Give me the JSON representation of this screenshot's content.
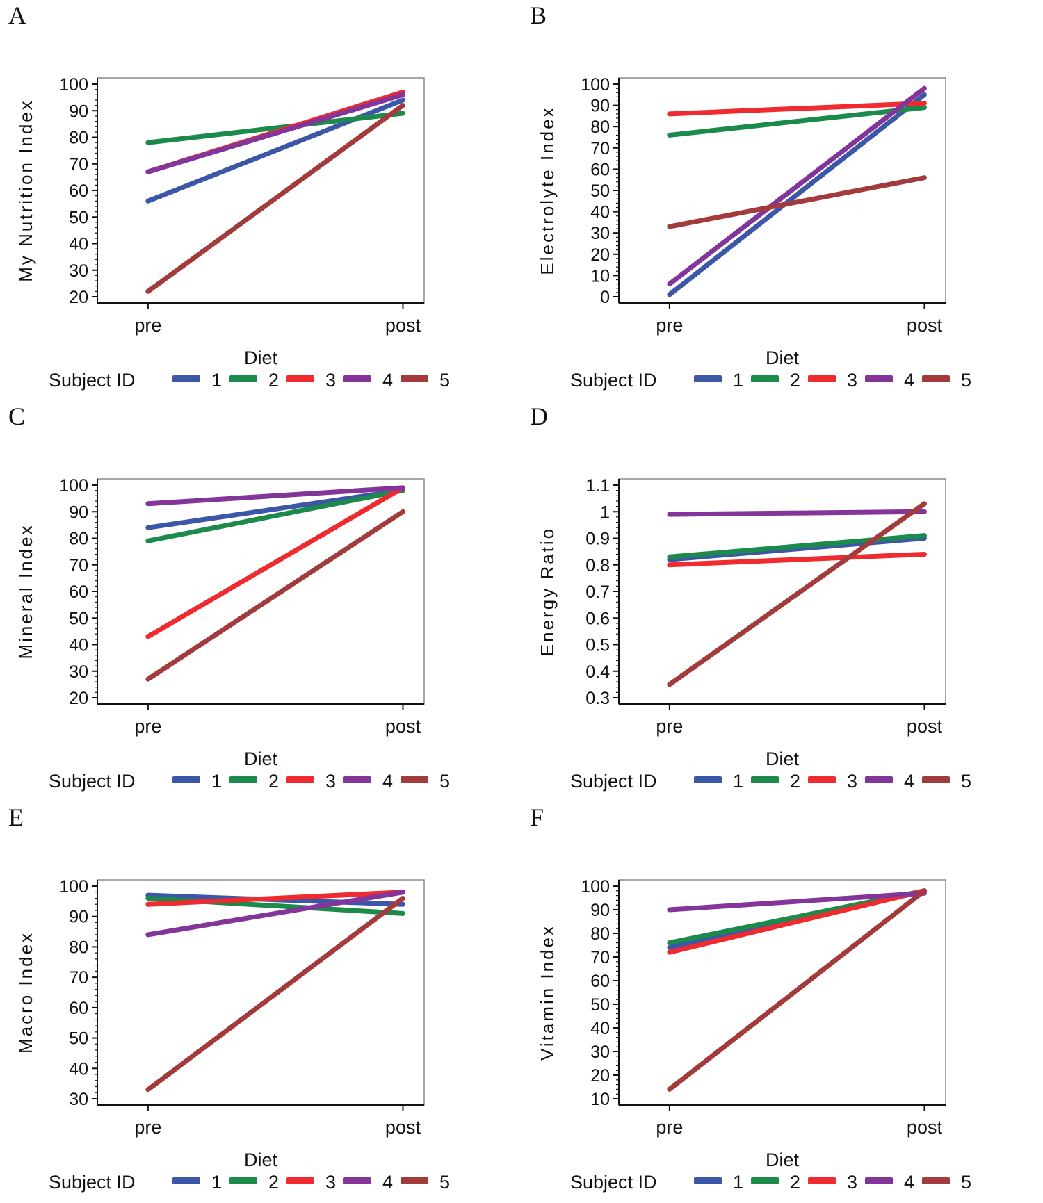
{
  "figure": {
    "background": "#ffffff",
    "x_axis_label": "Diet",
    "categories": [
      "pre",
      "post"
    ]
  },
  "legend": {
    "title": "Subject ID",
    "items": [
      {
        "label": "1",
        "color": "#3D57A8"
      },
      {
        "label": "2",
        "color": "#1B8A4A"
      },
      {
        "label": "3",
        "color": "#EF2B30"
      },
      {
        "label": "4",
        "color": "#83359A"
      },
      {
        "label": "5",
        "color": "#A33A3C"
      }
    ]
  },
  "chart_data": [
    {
      "panel": "A",
      "type": "line",
      "title": "",
      "xlabel": "Diet",
      "ylabel": "My Nutrition Index",
      "categories": [
        "pre",
        "post"
      ],
      "ylim": [
        20,
        100
      ],
      "ytick_values": [
        20,
        30,
        40,
        50,
        60,
        70,
        80,
        90,
        100
      ],
      "ytick_labels": [
        "20",
        "30",
        "40",
        "50",
        "60",
        "70",
        "80",
        "90",
        "100"
      ],
      "grid": false,
      "legend_position": "bottom",
      "series": [
        {
          "name": "1",
          "values": [
            56,
            94
          ]
        },
        {
          "name": "2",
          "values": [
            78,
            89
          ]
        },
        {
          "name": "3",
          "values": [
            67,
            97
          ]
        },
        {
          "name": "4",
          "values": [
            67,
            96
          ]
        },
        {
          "name": "5",
          "values": [
            22,
            92
          ]
        }
      ]
    },
    {
      "panel": "B",
      "type": "line",
      "title": "",
      "xlabel": "Diet",
      "ylabel": "Electrolyte Index",
      "categories": [
        "pre",
        "post"
      ],
      "ylim": [
        0,
        100
      ],
      "ytick_values": [
        0,
        10,
        20,
        30,
        40,
        50,
        60,
        70,
        80,
        90,
        100
      ],
      "ytick_labels": [
        "0",
        "10",
        "20",
        "30",
        "40",
        "50",
        "60",
        "70",
        "80",
        "90",
        "100"
      ],
      "grid": false,
      "legend_position": "bottom",
      "series": [
        {
          "name": "1",
          "values": [
            1,
            95
          ]
        },
        {
          "name": "2",
          "values": [
            76,
            89
          ]
        },
        {
          "name": "3",
          "values": [
            86,
            91
          ]
        },
        {
          "name": "4",
          "values": [
            6,
            98
          ]
        },
        {
          "name": "5",
          "values": [
            33,
            56
          ]
        }
      ]
    },
    {
      "panel": "C",
      "type": "line",
      "title": "",
      "xlabel": "Diet",
      "ylabel": "Mineral Index",
      "categories": [
        "pre",
        "post"
      ],
      "ylim": [
        20,
        100
      ],
      "ytick_values": [
        20,
        30,
        40,
        50,
        60,
        70,
        80,
        90,
        100
      ],
      "ytick_labels": [
        "20",
        "30",
        "40",
        "50",
        "60",
        "70",
        "80",
        "90",
        "100"
      ],
      "grid": false,
      "legend_position": "bottom",
      "series": [
        {
          "name": "1",
          "values": [
            84,
            98
          ]
        },
        {
          "name": "2",
          "values": [
            79,
            98
          ]
        },
        {
          "name": "3",
          "values": [
            43,
            99
          ]
        },
        {
          "name": "4",
          "values": [
            93,
            99
          ]
        },
        {
          "name": "5",
          "values": [
            27,
            90
          ]
        }
      ]
    },
    {
      "panel": "D",
      "type": "line",
      "title": "",
      "xlabel": "Diet",
      "ylabel": "Energy Ratio",
      "categories": [
        "pre",
        "post"
      ],
      "ylim": [
        0.3,
        1.1
      ],
      "ytick_values": [
        0.3,
        0.4,
        0.5,
        0.6,
        0.7,
        0.8,
        0.9,
        1.0,
        1.1
      ],
      "ytick_labels": [
        "0.3",
        "0.4",
        "0.5",
        "0.6",
        "0.7",
        "0.8",
        "0.9",
        "1",
        "1.1"
      ],
      "grid": false,
      "legend_position": "bottom",
      "series": [
        {
          "name": "1",
          "values": [
            0.82,
            0.9
          ]
        },
        {
          "name": "2",
          "values": [
            0.83,
            0.91
          ]
        },
        {
          "name": "3",
          "values": [
            0.8,
            0.84
          ]
        },
        {
          "name": "4",
          "values": [
            0.99,
            1.0
          ]
        },
        {
          "name": "5",
          "values": [
            0.35,
            1.03
          ]
        }
      ]
    },
    {
      "panel": "E",
      "type": "line",
      "title": "",
      "xlabel": "Diet",
      "ylabel": "Macro Index",
      "categories": [
        "pre",
        "post"
      ],
      "ylim": [
        30,
        100
      ],
      "ytick_values": [
        30,
        40,
        50,
        60,
        70,
        80,
        90,
        100
      ],
      "ytick_labels": [
        "30",
        "40",
        "50",
        "60",
        "70",
        "80",
        "90",
        "100"
      ],
      "grid": false,
      "legend_position": "bottom",
      "series": [
        {
          "name": "1",
          "values": [
            97,
            94
          ]
        },
        {
          "name": "2",
          "values": [
            96,
            91
          ]
        },
        {
          "name": "3",
          "values": [
            94,
            98
          ]
        },
        {
          "name": "4",
          "values": [
            84,
            98
          ]
        },
        {
          "name": "5",
          "values": [
            33,
            96
          ]
        }
      ]
    },
    {
      "panel": "F",
      "type": "line",
      "title": "",
      "xlabel": "Diet",
      "ylabel": "Vitamin Index",
      "categories": [
        "pre",
        "post"
      ],
      "ylim": [
        10,
        100
      ],
      "ytick_values": [
        10,
        20,
        30,
        40,
        50,
        60,
        70,
        80,
        90,
        100
      ],
      "ytick_labels": [
        "10",
        "20",
        "30",
        "40",
        "50",
        "60",
        "70",
        "80",
        "90",
        "100"
      ],
      "grid": false,
      "legend_position": "bottom",
      "series": [
        {
          "name": "1",
          "values": [
            74,
            98
          ]
        },
        {
          "name": "2",
          "values": [
            76,
            98
          ]
        },
        {
          "name": "3",
          "values": [
            72,
            98
          ]
        },
        {
          "name": "4",
          "values": [
            90,
            97
          ]
        },
        {
          "name": "5",
          "values": [
            14,
            98
          ]
        }
      ]
    }
  ]
}
